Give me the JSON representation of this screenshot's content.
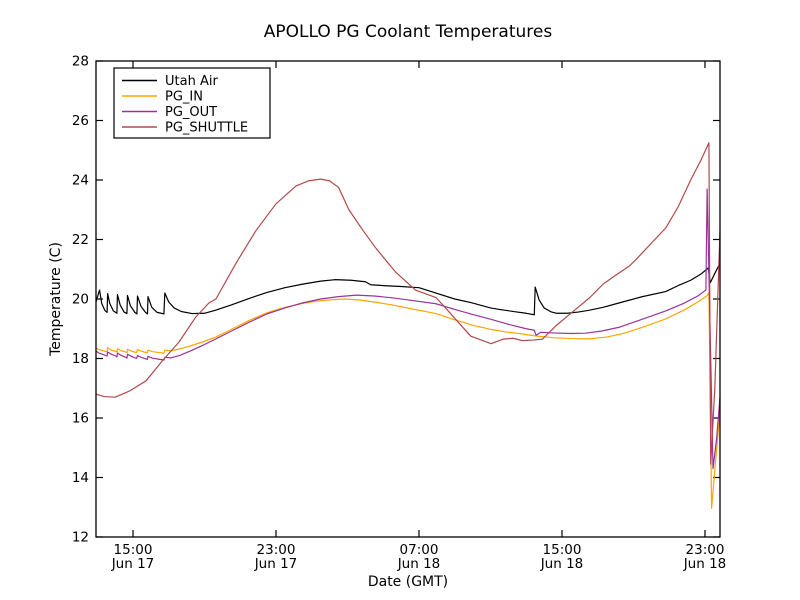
{
  "chart_data": {
    "type": "line",
    "title": "APOLLO PG Coolant Temperatures",
    "xlabel": "Date (GMT)",
    "ylabel": "Temperature (C)",
    "x_unit": "hours since Jun 17 00:00 GMT",
    "xlim": [
      12.93,
      47.84
    ],
    "ylim": [
      12,
      28
    ],
    "grid": false,
    "background_color": "#ffffff",
    "frame_color": "#000000",
    "y_ticks": [
      12,
      14,
      16,
      18,
      20,
      22,
      24,
      26,
      28
    ],
    "x_ticks": [
      {
        "t": 15,
        "time": "15:00",
        "date": "Jun 17"
      },
      {
        "t": 23,
        "time": "23:00",
        "date": "Jun 17"
      },
      {
        "t": 31,
        "time": "07:00",
        "date": "Jun 18"
      },
      {
        "t": 39,
        "time": "15:00",
        "date": "Jun 18"
      },
      {
        "t": 47,
        "time": "23:00",
        "date": "Jun 18"
      }
    ],
    "legend": {
      "position": "upper left",
      "entries": [
        "Utah Air",
        "PG_IN",
        "PG_OUT",
        "PG_SHUTTLE"
      ]
    },
    "series": [
      {
        "name": "Utah Air",
        "color": "#000000",
        "points": [
          [
            12.93,
            19.9
          ],
          [
            13.0,
            20.05
          ],
          [
            13.13,
            20.3
          ],
          [
            13.25,
            19.85
          ],
          [
            13.42,
            19.62
          ],
          [
            13.55,
            19.55
          ],
          [
            13.58,
            20.18
          ],
          [
            13.7,
            19.85
          ],
          [
            13.9,
            19.6
          ],
          [
            14.1,
            19.52
          ],
          [
            14.13,
            20.15
          ],
          [
            14.28,
            19.8
          ],
          [
            14.5,
            19.56
          ],
          [
            14.66,
            19.51
          ],
          [
            14.69,
            20.12
          ],
          [
            14.85,
            19.78
          ],
          [
            15.1,
            19.55
          ],
          [
            15.22,
            19.5
          ],
          [
            15.25,
            20.1
          ],
          [
            15.45,
            19.75
          ],
          [
            15.7,
            19.55
          ],
          [
            15.81,
            19.5
          ],
          [
            15.84,
            20.08
          ],
          [
            16.05,
            19.72
          ],
          [
            16.35,
            19.55
          ],
          [
            16.73,
            19.5
          ],
          [
            16.78,
            20.2
          ],
          [
            17.0,
            19.9
          ],
          [
            17.3,
            19.7
          ],
          [
            17.7,
            19.58
          ],
          [
            18.3,
            19.51
          ],
          [
            19.0,
            19.52
          ],
          [
            19.6,
            19.62
          ],
          [
            20.5,
            19.8
          ],
          [
            21.5,
            20.02
          ],
          [
            22.5,
            20.22
          ],
          [
            23.5,
            20.38
          ],
          [
            24.5,
            20.5
          ],
          [
            25.5,
            20.6
          ],
          [
            26.3,
            20.65
          ],
          [
            27.2,
            20.63
          ],
          [
            28.0,
            20.58
          ],
          [
            28.3,
            20.48
          ],
          [
            29.0,
            20.45
          ],
          [
            30.0,
            20.42
          ],
          [
            31.0,
            20.38
          ],
          [
            31.95,
            20.2
          ],
          [
            33.0,
            20.0
          ],
          [
            33.9,
            19.88
          ],
          [
            35.0,
            19.7
          ],
          [
            35.5,
            19.65
          ],
          [
            36.4,
            19.57
          ],
          [
            37.0,
            19.52
          ],
          [
            37.45,
            19.47
          ],
          [
            37.5,
            20.4
          ],
          [
            37.72,
            19.97
          ],
          [
            38.0,
            19.7
          ],
          [
            38.38,
            19.57
          ],
          [
            38.7,
            19.52
          ],
          [
            39.3,
            19.52
          ],
          [
            39.9,
            19.56
          ],
          [
            40.5,
            19.62
          ],
          [
            41.3,
            19.72
          ],
          [
            41.9,
            19.82
          ],
          [
            42.7,
            19.95
          ],
          [
            43.5,
            20.08
          ],
          [
            44.8,
            20.25
          ],
          [
            45.5,
            20.45
          ],
          [
            46.2,
            20.63
          ],
          [
            46.8,
            20.85
          ],
          [
            47.1,
            21.0
          ],
          [
            47.18,
            21.05
          ],
          [
            47.3,
            20.55
          ],
          [
            47.5,
            20.8
          ],
          [
            47.84,
            21.2
          ]
        ]
      },
      {
        "name": "PG_IN",
        "color": "#ffa500",
        "points": [
          [
            12.93,
            18.35
          ],
          [
            13.1,
            18.3
          ],
          [
            13.4,
            18.25
          ],
          [
            13.55,
            18.22
          ],
          [
            13.58,
            18.36
          ],
          [
            13.8,
            18.28
          ],
          [
            14.05,
            18.24
          ],
          [
            14.1,
            18.21
          ],
          [
            14.13,
            18.33
          ],
          [
            14.35,
            18.26
          ],
          [
            14.6,
            18.22
          ],
          [
            14.66,
            18.19
          ],
          [
            14.69,
            18.31
          ],
          [
            14.95,
            18.24
          ],
          [
            15.2,
            18.2
          ],
          [
            15.25,
            18.3
          ],
          [
            15.5,
            18.24
          ],
          [
            15.8,
            18.19
          ],
          [
            15.84,
            18.28
          ],
          [
            16.1,
            18.23
          ],
          [
            16.5,
            18.2
          ],
          [
            16.74,
            18.18
          ],
          [
            16.78,
            18.28
          ],
          [
            17.1,
            18.26
          ],
          [
            17.6,
            18.32
          ],
          [
            18.2,
            18.42
          ],
          [
            19.0,
            18.58
          ],
          [
            19.64,
            18.72
          ],
          [
            20.5,
            18.98
          ],
          [
            21.5,
            19.28
          ],
          [
            22.5,
            19.54
          ],
          [
            23.5,
            19.72
          ],
          [
            24.5,
            19.85
          ],
          [
            25.3,
            19.93
          ],
          [
            26.0,
            19.97
          ],
          [
            26.8,
            20.0
          ],
          [
            27.6,
            19.97
          ],
          [
            28.5,
            19.9
          ],
          [
            29.5,
            19.8
          ],
          [
            30.5,
            19.68
          ],
          [
            31.95,
            19.51
          ],
          [
            33.0,
            19.3
          ],
          [
            34.0,
            19.12
          ],
          [
            35.0,
            18.98
          ],
          [
            36.0,
            18.88
          ],
          [
            36.6,
            18.84
          ],
          [
            37.5,
            18.76
          ],
          [
            38.5,
            18.7
          ],
          [
            39.5,
            18.67
          ],
          [
            40.5,
            18.66
          ],
          [
            41.5,
            18.72
          ],
          [
            42.5,
            18.85
          ],
          [
            43.5,
            19.05
          ],
          [
            44.8,
            19.33
          ],
          [
            45.8,
            19.62
          ],
          [
            46.6,
            19.9
          ],
          [
            47.1,
            20.1
          ],
          [
            47.22,
            20.22
          ],
          [
            47.37,
            12.96
          ],
          [
            47.6,
            14.6
          ],
          [
            47.84,
            16.2
          ]
        ]
      },
      {
        "name": "PG_OUT",
        "color": "#993399",
        "points": [
          [
            12.93,
            18.25
          ],
          [
            13.1,
            18.18
          ],
          [
            13.4,
            18.12
          ],
          [
            13.55,
            18.08
          ],
          [
            13.58,
            18.22
          ],
          [
            13.8,
            18.14
          ],
          [
            14.05,
            18.08
          ],
          [
            14.1,
            18.05
          ],
          [
            14.13,
            18.18
          ],
          [
            14.35,
            18.1
          ],
          [
            14.6,
            18.04
          ],
          [
            14.66,
            18.01
          ],
          [
            14.69,
            18.14
          ],
          [
            14.95,
            18.06
          ],
          [
            15.2,
            18.0
          ],
          [
            15.25,
            18.1
          ],
          [
            15.5,
            18.03
          ],
          [
            15.8,
            17.97
          ],
          [
            15.84,
            18.07
          ],
          [
            16.1,
            18.01
          ],
          [
            16.5,
            17.97
          ],
          [
            16.74,
            17.95
          ],
          [
            16.78,
            18.04
          ],
          [
            17.1,
            18.02
          ],
          [
            17.6,
            18.1
          ],
          [
            18.2,
            18.25
          ],
          [
            19.0,
            18.47
          ],
          [
            19.64,
            18.66
          ],
          [
            20.5,
            18.92
          ],
          [
            21.5,
            19.22
          ],
          [
            22.5,
            19.5
          ],
          [
            23.5,
            19.7
          ],
          [
            24.5,
            19.87
          ],
          [
            25.5,
            20.0
          ],
          [
            26.5,
            20.08
          ],
          [
            27.5,
            20.13
          ],
          [
            28.5,
            20.1
          ],
          [
            29.5,
            20.04
          ],
          [
            30.5,
            19.96
          ],
          [
            31.95,
            19.84
          ],
          [
            33.0,
            19.65
          ],
          [
            34.0,
            19.48
          ],
          [
            35.0,
            19.32
          ],
          [
            36.0,
            19.15
          ],
          [
            37.0,
            19.0
          ],
          [
            37.45,
            18.95
          ],
          [
            37.55,
            18.78
          ],
          [
            37.8,
            18.88
          ],
          [
            38.5,
            18.86
          ],
          [
            39.5,
            18.84
          ],
          [
            40.3,
            18.85
          ],
          [
            41.2,
            18.92
          ],
          [
            42.2,
            19.05
          ],
          [
            43.3,
            19.28
          ],
          [
            44.8,
            19.6
          ],
          [
            45.8,
            19.85
          ],
          [
            46.6,
            20.1
          ],
          [
            47.05,
            20.3
          ],
          [
            47.12,
            23.7
          ],
          [
            47.45,
            14.3
          ],
          [
            47.65,
            15.3
          ],
          [
            47.84,
            16.7
          ]
        ]
      },
      {
        "name": "PG_SHUTTLE",
        "color": "#b04a4a",
        "points": [
          [
            12.93,
            16.8
          ],
          [
            13.4,
            16.72
          ],
          [
            14.0,
            16.7
          ],
          [
            14.78,
            16.9
          ],
          [
            15.73,
            17.25
          ],
          [
            16.68,
            17.95
          ],
          [
            17.57,
            18.55
          ],
          [
            18.52,
            19.4
          ],
          [
            19.25,
            19.87
          ],
          [
            19.64,
            20.0
          ],
          [
            20.76,
            21.2
          ],
          [
            21.88,
            22.3
          ],
          [
            23.0,
            23.2
          ],
          [
            24.12,
            23.8
          ],
          [
            24.8,
            23.97
          ],
          [
            25.5,
            24.03
          ],
          [
            26.0,
            23.97
          ],
          [
            26.5,
            23.75
          ],
          [
            27.08,
            23.0
          ],
          [
            27.87,
            22.3
          ],
          [
            28.6,
            21.7
          ],
          [
            29.7,
            20.9
          ],
          [
            30.8,
            20.3
          ],
          [
            31.95,
            20.05
          ],
          [
            32.56,
            19.65
          ],
          [
            33.3,
            19.15
          ],
          [
            33.9,
            18.75
          ],
          [
            35.03,
            18.5
          ],
          [
            35.7,
            18.65
          ],
          [
            36.26,
            18.68
          ],
          [
            36.8,
            18.6
          ],
          [
            37.37,
            18.62
          ],
          [
            37.9,
            18.65
          ],
          [
            38.66,
            19.1
          ],
          [
            39.8,
            19.67
          ],
          [
            40.56,
            20.05
          ],
          [
            41.3,
            20.5
          ],
          [
            42.0,
            20.8
          ],
          [
            42.75,
            21.1
          ],
          [
            43.1,
            21.3
          ],
          [
            44.82,
            22.4
          ],
          [
            45.5,
            23.1
          ],
          [
            46.2,
            24.0
          ],
          [
            46.8,
            24.7
          ],
          [
            47.22,
            25.25
          ],
          [
            47.32,
            14.45
          ],
          [
            47.55,
            17.0
          ],
          [
            47.84,
            22.3
          ]
        ]
      }
    ]
  }
}
